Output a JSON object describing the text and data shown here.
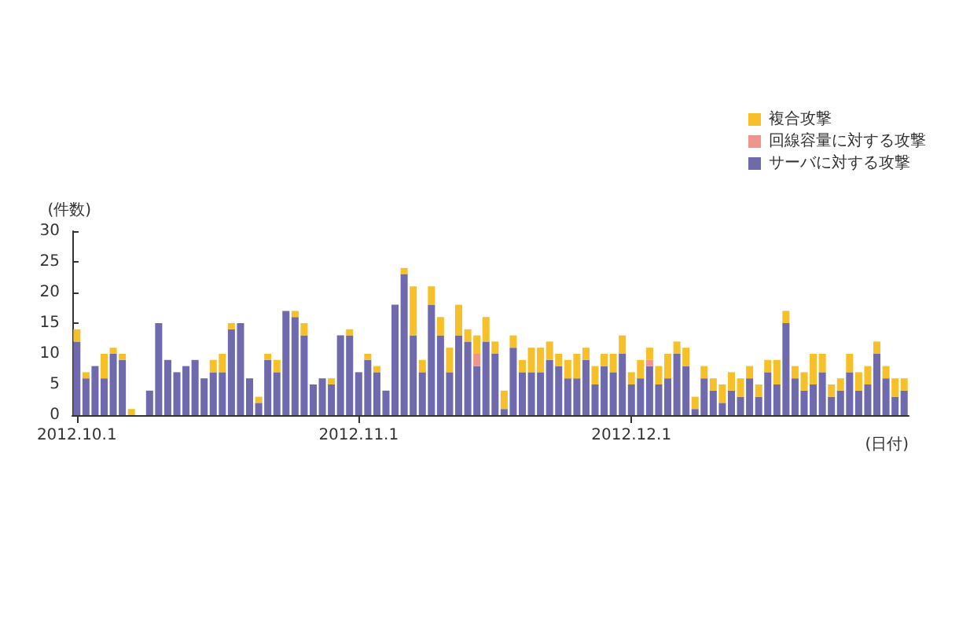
{
  "chart_data": {
    "type": "bar",
    "stacked": true,
    "ylabel": "(件数)",
    "xlabel": "(日付)",
    "categories": [
      "2012.10.1",
      null,
      null,
      null,
      null,
      null,
      null,
      null,
      null,
      null,
      null,
      null,
      null,
      null,
      null,
      null,
      null,
      null,
      null,
      null,
      null,
      null,
      null,
      null,
      null,
      null,
      null,
      null,
      null,
      null,
      null,
      "2012.11.1",
      null,
      null,
      null,
      null,
      null,
      null,
      null,
      null,
      null,
      null,
      null,
      null,
      null,
      null,
      null,
      null,
      null,
      null,
      null,
      null,
      null,
      null,
      null,
      null,
      null,
      null,
      null,
      null,
      null,
      "2012.12.1",
      null,
      null,
      null,
      null,
      null,
      null,
      null,
      null,
      null,
      null,
      null,
      null,
      null,
      null,
      null,
      null,
      null,
      null,
      null,
      null,
      null,
      null,
      null,
      null,
      null,
      null,
      null,
      null,
      null,
      null
    ],
    "series": [
      {
        "name": "サーバに対する攻撃",
        "color": "#6e6aad",
        "values": [
          12,
          6,
          8,
          6,
          10,
          9,
          0,
          0,
          4,
          15,
          9,
          7,
          8,
          9,
          6,
          7,
          7,
          14,
          15,
          6,
          2,
          9,
          7,
          17,
          16,
          13,
          5,
          6,
          5,
          13,
          13,
          7,
          9,
          7,
          4,
          18,
          23,
          13,
          7,
          18,
          13,
          7,
          13,
          12,
          8,
          12,
          10,
          1,
          11,
          7,
          7,
          7,
          9,
          8,
          6,
          6,
          9,
          5,
          8,
          7,
          10,
          5,
          6,
          8,
          5,
          6,
          10,
          8,
          1,
          6,
          4,
          2,
          4,
          3,
          6,
          3,
          7,
          5,
          15,
          6,
          4,
          5,
          7,
          3,
          4,
          7,
          4,
          5,
          10,
          6,
          3,
          4
        ]
      },
      {
        "name": "回線容量に対する攻撃",
        "color": "#f0958a",
        "values": [
          0,
          0,
          0,
          0,
          0,
          0,
          0,
          0,
          0,
          0,
          0,
          0,
          0,
          0,
          0,
          0,
          0,
          0,
          0,
          0,
          0,
          0,
          0,
          0,
          0,
          0,
          0,
          0,
          0,
          0,
          0,
          0,
          0,
          0,
          0,
          0,
          0,
          0,
          0,
          0,
          0,
          0,
          0,
          0,
          2,
          0,
          0,
          0,
          0,
          0,
          0,
          0,
          0,
          0,
          0,
          0,
          0,
          0,
          0,
          0,
          0,
          0,
          0,
          1,
          0,
          0,
          0,
          0,
          0,
          0,
          0,
          0,
          0,
          0,
          0,
          0,
          0,
          0,
          0,
          0,
          0,
          0,
          0,
          0,
          0,
          0,
          0,
          0,
          0,
          0,
          0,
          0
        ]
      },
      {
        "name": "複合攻撃",
        "color": "#f5c02a",
        "values": [
          2,
          1,
          0,
          4,
          1,
          1,
          1,
          0,
          0,
          0,
          0,
          0,
          0,
          0,
          0,
          2,
          3,
          1,
          0,
          0,
          1,
          1,
          2,
          0,
          1,
          2,
          0,
          0,
          1,
          0,
          1,
          0,
          1,
          1,
          0,
          0,
          1,
          8,
          2,
          3,
          3,
          4,
          5,
          2,
          3,
          4,
          2,
          3,
          2,
          2,
          4,
          4,
          3,
          2,
          3,
          4,
          2,
          3,
          2,
          3,
          3,
          2,
          3,
          2,
          3,
          4,
          2,
          3,
          2,
          2,
          2,
          3,
          3,
          3,
          2,
          2,
          2,
          4,
          2,
          2,
          3,
          5,
          3,
          2,
          2,
          3,
          3,
          3,
          2,
          2,
          3,
          2
        ]
      }
    ],
    "ylim": [
      0,
      30
    ],
    "yticks": [
      0,
      5,
      10,
      15,
      20,
      25,
      30
    ],
    "grid": false,
    "legend": "top right"
  }
}
